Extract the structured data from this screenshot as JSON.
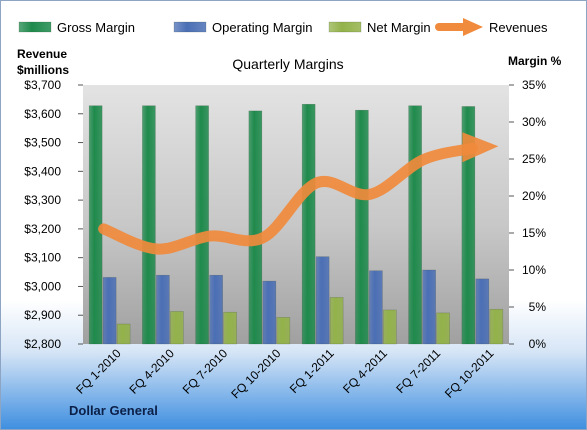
{
  "chart_data": {
    "type": "bar",
    "title": "Quarterly Margins",
    "footer": "Dollar General",
    "categories": [
      "FQ 1-2010",
      "FQ 4-2010",
      "FQ 7-2010",
      "FQ 10-2010",
      "FQ 1-2011",
      "FQ 4-2011",
      "FQ 7-2011",
      "FQ 10-2011"
    ],
    "left_axis": {
      "title_line1": "Revenue",
      "title_line2": "$millions",
      "min": 2800,
      "max": 3700,
      "step": 100,
      "ticks": [
        "$2,800",
        "$2,900",
        "$3,000",
        "$3,100",
        "$3,200",
        "$3,300",
        "$3,400",
        "$3,500",
        "$3,600",
        "$3,700"
      ]
    },
    "right_axis": {
      "title": "Margin %",
      "min": 0,
      "max": 35,
      "step": 5,
      "ticks": [
        "0%",
        "5%",
        "10%",
        "15%",
        "20%",
        "25%",
        "30%",
        "35%"
      ]
    },
    "series": [
      {
        "name": "Gross Margin",
        "kind": "bar",
        "axis": "right",
        "color": "#1f8a4c",
        "values": [
          32.2,
          32.2,
          32.2,
          31.5,
          32.4,
          31.6,
          32.2,
          32.1
        ]
      },
      {
        "name": "Operating Margin",
        "kind": "bar",
        "axis": "right",
        "color": "#4b6fb5",
        "values": [
          9.0,
          9.3,
          9.3,
          8.5,
          11.8,
          9.9,
          10.0,
          8.8
        ]
      },
      {
        "name": "Net Margin",
        "kind": "bar",
        "axis": "right",
        "color": "#93b24a",
        "values": [
          2.7,
          4.4,
          4.3,
          3.6,
          6.3,
          4.6,
          4.2,
          4.7
        ]
      },
      {
        "name": "Revenues",
        "kind": "line",
        "axis": "left",
        "color": "#f08a3c",
        "values": [
          3200,
          3130,
          3175,
          3170,
          3360,
          3320,
          3440,
          3480
        ]
      }
    ],
    "legend_position": "top",
    "grid": false
  }
}
